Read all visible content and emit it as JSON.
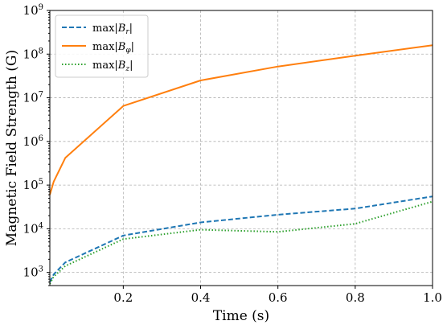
{
  "chart_data": {
    "type": "line",
    "xlabel": "Time (s)",
    "ylabel": "Magnetic Field Strength (G)",
    "xlim": [
      0.01,
      1.0
    ],
    "ylim": [
      500,
      1000000000
    ],
    "yscale": "log",
    "grid": true,
    "legend_position": "top-left",
    "x_ticks": [
      "0.2",
      "0.4",
      "0.6",
      "0.8",
      "1.0"
    ],
    "x_tick_values": [
      0.2,
      0.4,
      0.6,
      0.8,
      1.0
    ],
    "y_ticks": [
      {
        "base": "10",
        "exp": "3",
        "value": 1000
      },
      {
        "base": "10",
        "exp": "4",
        "value": 10000
      },
      {
        "base": "10",
        "exp": "5",
        "value": 100000
      },
      {
        "base": "10",
        "exp": "6",
        "value": 1000000
      },
      {
        "base": "10",
        "exp": "7",
        "value": 10000000
      },
      {
        "base": "10",
        "exp": "8",
        "value": 100000000
      },
      {
        "base": "10",
        "exp": "9",
        "value": 1000000000
      }
    ],
    "series": [
      {
        "name": "max|B_r|",
        "legend": {
          "prefix": "max|",
          "symbol": "B",
          "sub": "r",
          "suffix": "|"
        },
        "color": "#1f77b4",
        "style": "dashed",
        "x": [
          0.01,
          0.02,
          0.05,
          0.2,
          0.4,
          0.6,
          0.8,
          1.0
        ],
        "y": [
          600,
          900,
          1700,
          7000,
          14000,
          21000,
          29000,
          55000
        ]
      },
      {
        "name": "max|B_φ|",
        "legend": {
          "prefix": "max|",
          "symbol": "B",
          "sub": "φ",
          "suffix": "|"
        },
        "color": "#ff7f0e",
        "style": "solid",
        "x": [
          0.01,
          0.02,
          0.05,
          0.2,
          0.4,
          0.6,
          0.8,
          1.0
        ],
        "y": [
          60000,
          120000,
          420000,
          6500000,
          25000000,
          52000000,
          92000000,
          160000000
        ]
      },
      {
        "name": "max|B_z|",
        "legend": {
          "prefix": "max|",
          "symbol": "B",
          "sub": "z",
          "suffix": "|"
        },
        "color": "#2ca02c",
        "style": "dotted",
        "x": [
          0.01,
          0.02,
          0.05,
          0.2,
          0.4,
          0.6,
          0.8,
          1.0
        ],
        "y": [
          550,
          800,
          1400,
          5800,
          9500,
          8500,
          13000,
          42000
        ]
      }
    ]
  }
}
